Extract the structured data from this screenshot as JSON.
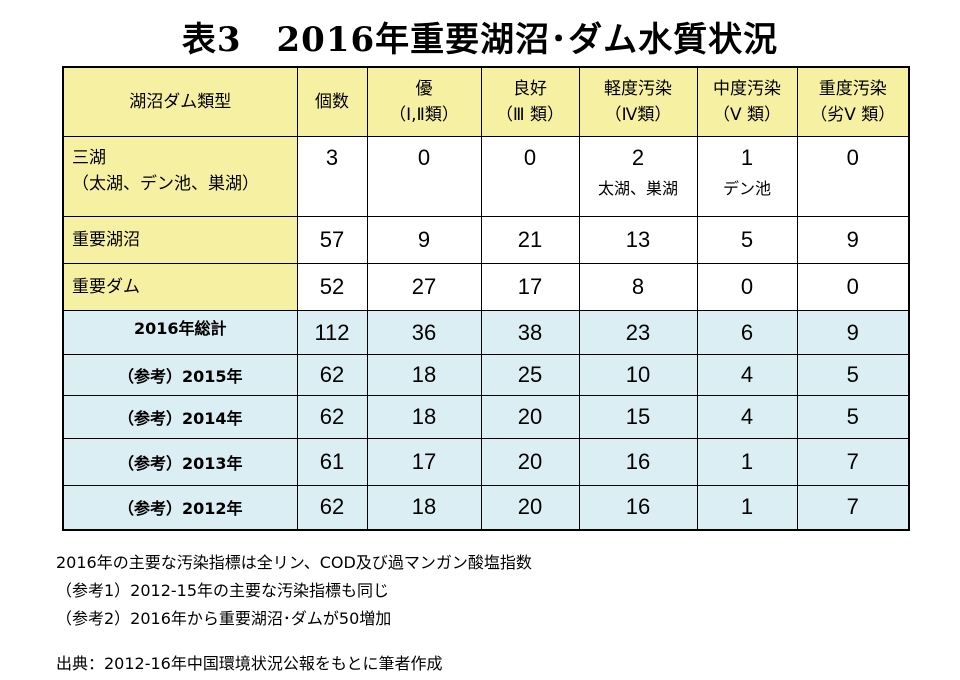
{
  "title": "表3　2016年重要湖沼･ダム水質状況",
  "header": {
    "category": "湖沼ダム類型",
    "count": "個数",
    "excellent": "優",
    "excellent_sub": "（Ⅰ,Ⅱ類）",
    "good": "良好",
    "good_sub": "（Ⅲ 類）",
    "light": "軽度汚染",
    "light_sub": "（Ⅳ類）",
    "medium": "中度汚染",
    "medium_sub": "（Ⅴ 類）",
    "heavy": "重度汚染",
    "heavy_sub": "（劣Ⅴ 類）"
  },
  "rows": [
    {
      "label": "三湖",
      "label2": "（太湖、デン池、巣湖）",
      "count": "3",
      "excellent": "0",
      "good": "0",
      "light": "2",
      "light_note": "太湖、巣湖",
      "medium": "1",
      "medium_note": "デン池",
      "heavy": "0"
    },
    {
      "label": "重要湖沼",
      "count": "57",
      "excellent": "9",
      "good": "21",
      "light": "13",
      "medium": "5",
      "heavy": "9"
    },
    {
      "label": "重要ダム",
      "count": "52",
      "excellent": "27",
      "good": "17",
      "light": "8",
      "medium": "0",
      "heavy": "0"
    },
    {
      "label": "2016年総計",
      "count": "112",
      "excellent": "36",
      "good": "38",
      "light": "23",
      "medium": "6",
      "heavy": "9"
    },
    {
      "label": "（参考）2015年",
      "count": "62",
      "excellent": "18",
      "good": "25",
      "light": "10",
      "medium": "4",
      "heavy": "5"
    },
    {
      "label": "（参考）2014年",
      "count": "62",
      "excellent": "18",
      "good": "20",
      "light": "15",
      "medium": "4",
      "heavy": "5"
    },
    {
      "label": "（参考）2013年",
      "count": "61",
      "excellent": "17",
      "good": "20",
      "light": "16",
      "medium": "1",
      "heavy": "7"
    },
    {
      "label": "（参考）2012年",
      "count": "62",
      "excellent": "18",
      "good": "20",
      "light": "16",
      "medium": "1",
      "heavy": "7"
    }
  ],
  "notes": [
    "2016年の主要な汚染指標は全リン、COD及び過マンガン酸塩指数",
    "（参考1）2012-15年の主要な汚染指標も同じ",
    "（参考2）2016年から重要湖沼･ダムが50増加"
  ],
  "source": "出典：2012-16年中国環境状況公報をもとに筆者作成",
  "colors": {
    "header_bg": "#f6f0a3",
    "summary_bg": "#dbeef3"
  }
}
